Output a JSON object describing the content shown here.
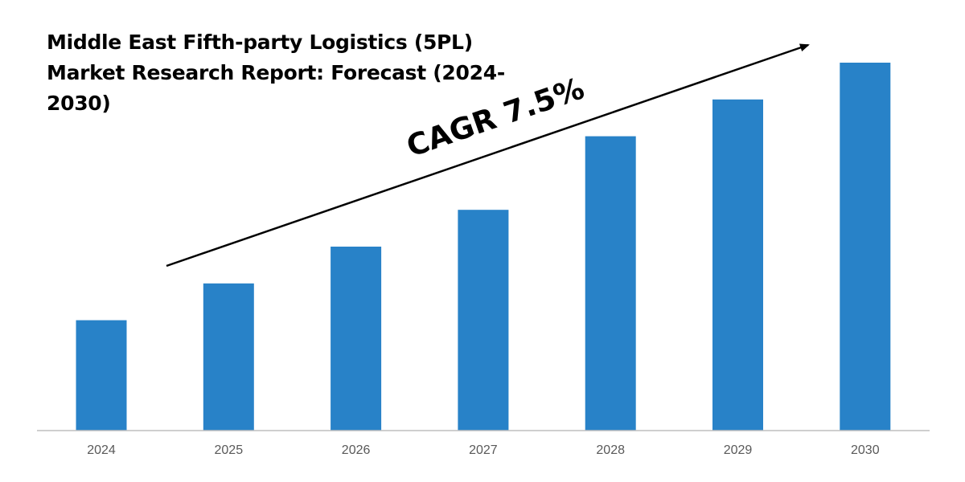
{
  "chart_data": {
    "type": "bar",
    "title": "Middle East Fifth-party Logistics (5PL) Market Research Report: Forecast (2024-2030)",
    "categories": [
      "2024",
      "2025",
      "2026",
      "2027",
      "2028",
      "2029",
      "2030"
    ],
    "values": [
      30,
      40,
      50,
      60,
      80,
      90,
      100
    ],
    "ylim": [
      0,
      100
    ],
    "grid": false,
    "legend": "none",
    "bar_color": "#2882C8",
    "axis_color": "#BFBFBF",
    "annotation": {
      "text": "CAGR 7.5%",
      "type": "arrow"
    }
  }
}
